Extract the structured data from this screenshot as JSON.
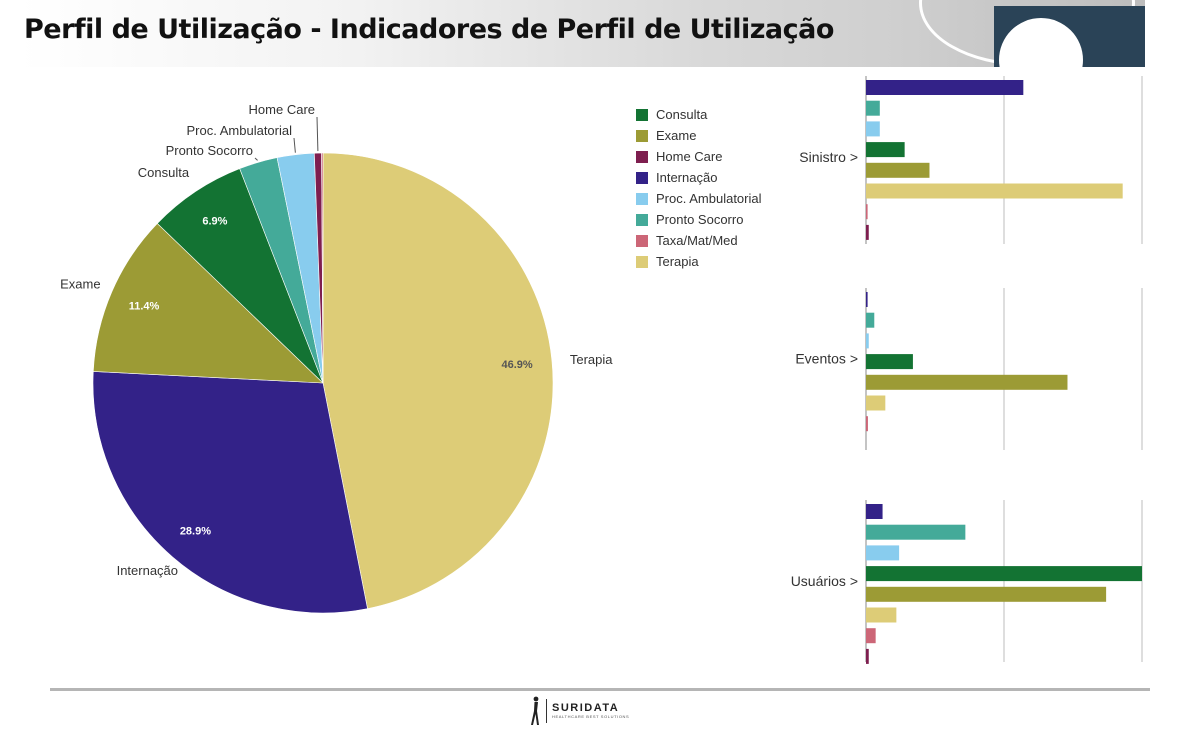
{
  "page": {
    "title": "Perfil de Utilização - Indicadores de Perfil de Utilização"
  },
  "legend": {
    "items": [
      {
        "label": "Consulta",
        "color": "#137333"
      },
      {
        "label": "Exame",
        "color": "#9c9b35"
      },
      {
        "label": "Home Care",
        "color": "#7e1e4f"
      },
      {
        "label": "Internação",
        "color": "#332288"
      },
      {
        "label": "Proc. Ambulatorial",
        "color": "#88ccee"
      },
      {
        "label": "Pronto Socorro",
        "color": "#44aa99"
      },
      {
        "label": "Taxa/Mat/Med",
        "color": "#cc6677"
      },
      {
        "label": "Terapia",
        "color": "#ddcc77"
      }
    ]
  },
  "chart_data": [
    {
      "type": "pie",
      "start": "12 o'clock, clockwise",
      "slices": [
        {
          "label": "Terapia",
          "value": 46.9,
          "display": "46.9%",
          "color": "#ddcc77"
        },
        {
          "label": "Internação",
          "value": 28.9,
          "display": "28.9%",
          "color": "#332288"
        },
        {
          "label": "Exame",
          "value": 11.4,
          "display": "11.4%",
          "color": "#9c9b35"
        },
        {
          "label": "Consulta",
          "value": 6.9,
          "display": "6.9%",
          "color": "#137333"
        },
        {
          "label": "Pronto Socorro",
          "value": 2.7,
          "display": "",
          "color": "#44aa99"
        },
        {
          "label": "Proc. Ambulatorial",
          "value": 2.6,
          "display": "",
          "color": "#88ccee"
        },
        {
          "label": "Home Care",
          "value": 0.5,
          "display": "",
          "color": "#7e1e4f"
        },
        {
          "label": "Taxa/Mat/Med",
          "value": 0.1,
          "display": "",
          "color": "#cc6677"
        }
      ]
    },
    {
      "type": "bar",
      "orientation": "horizontal",
      "group_label": "Sinistro >",
      "xlim": [
        0,
        100
      ],
      "grid": "vertical",
      "categories": [
        "Internação",
        "Pronto Socorro",
        "Proc. Ambulatorial",
        "Consulta",
        "Exame",
        "Terapia",
        "Taxa/Mat/Med",
        "Home Care"
      ],
      "values": [
        57,
        5,
        5,
        14,
        23,
        93,
        0.4,
        1
      ],
      "colors": [
        "#332288",
        "#44aa99",
        "#88ccee",
        "#137333",
        "#9c9b35",
        "#ddcc77",
        "#cc6677",
        "#7e1e4f"
      ]
    },
    {
      "type": "bar",
      "orientation": "horizontal",
      "group_label": "Eventos >",
      "xlim": [
        0,
        100
      ],
      "grid": "vertical",
      "categories": [
        "Internação",
        "Pronto Socorro",
        "Proc. Ambulatorial",
        "Consulta",
        "Exame",
        "Terapia",
        "Taxa/Mat/Med"
      ],
      "values": [
        0.5,
        3,
        1,
        17,
        73,
        7,
        0.7
      ],
      "colors": [
        "#332288",
        "#44aa99",
        "#88ccee",
        "#137333",
        "#9c9b35",
        "#ddcc77",
        "#cc6677"
      ]
    },
    {
      "type": "bar",
      "orientation": "horizontal",
      "group_label": "Usuários >",
      "xlim": [
        0,
        100
      ],
      "grid": "vertical",
      "categories": [
        "Internação",
        "Pronto Socorro",
        "Proc. Ambulatorial",
        "Consulta",
        "Exame",
        "Terapia",
        "Taxa/Mat/Med",
        "Home Care"
      ],
      "values": [
        6,
        36,
        12,
        100,
        87,
        11,
        3.5,
        1
      ],
      "colors": [
        "#332288",
        "#44aa99",
        "#88ccee",
        "#137333",
        "#9c9b35",
        "#ddcc77",
        "#cc6677",
        "#7e1e4f"
      ]
    }
  ],
  "footer": {
    "logo_name": "SURIDATA",
    "logo_tagline": "HEALTHCARE BEST SOLUTIONS"
  }
}
